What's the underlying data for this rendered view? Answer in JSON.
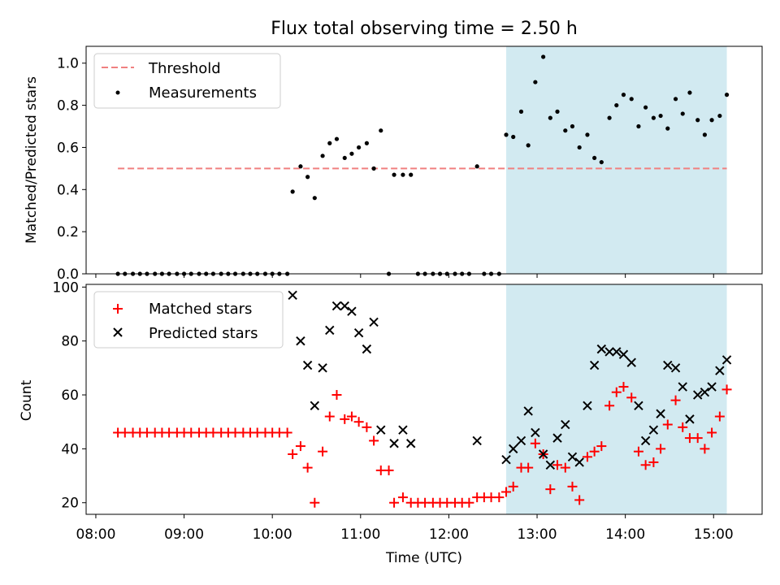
{
  "chart_data": {
    "type": "scatter",
    "title": "Flux total observing time = 2.50 h",
    "shared_x": {
      "xlabel": "Time (UTC)",
      "unit": "hours UTC",
      "ticks": [
        "08:00",
        "09:00",
        "10:00",
        "11:00",
        "12:00",
        "13:00",
        "14:00",
        "15:00"
      ],
      "tick_values": [
        8,
        9,
        10,
        11,
        12,
        13,
        14,
        15
      ],
      "xlim": [
        7.89,
        15.55
      ]
    },
    "highlight_span": {
      "x": [
        12.65,
        15.15
      ],
      "color": "#add8e6"
    },
    "top": {
      "ylabel": "Matched/Predicted stars",
      "ylim": [
        0,
        1.08
      ],
      "yticks": [
        "0.0",
        "0.2",
        "0.4",
        "0.6",
        "0.8",
        "1.0"
      ],
      "ytick_values": [
        0,
        0.2,
        0.4,
        0.6,
        0.8,
        1.0
      ],
      "legend": {
        "placement": "upper left",
        "entries": [
          "Threshold",
          "Measurements"
        ]
      },
      "threshold": {
        "name": "Threshold",
        "value": 0.5,
        "x": [
          8.25,
          15.15
        ],
        "color": "#f08080"
      },
      "measurements": {
        "name": "Measurements",
        "color": "#000000",
        "points": [
          [
            8.25,
            0
          ],
          [
            8.33,
            0
          ],
          [
            8.42,
            0
          ],
          [
            8.5,
            0
          ],
          [
            8.58,
            0
          ],
          [
            8.67,
            0
          ],
          [
            8.75,
            0
          ],
          [
            8.83,
            0
          ],
          [
            8.92,
            0
          ],
          [
            9.0,
            0
          ],
          [
            9.08,
            0
          ],
          [
            9.17,
            0
          ],
          [
            9.25,
            0
          ],
          [
            9.33,
            0
          ],
          [
            9.42,
            0
          ],
          [
            9.5,
            0
          ],
          [
            9.58,
            0
          ],
          [
            9.67,
            0
          ],
          [
            9.75,
            0
          ],
          [
            9.83,
            0
          ],
          [
            9.92,
            0
          ],
          [
            10.0,
            0
          ],
          [
            10.08,
            0
          ],
          [
            10.17,
            0
          ],
          [
            10.23,
            0.39
          ],
          [
            10.32,
            0.51
          ],
          [
            10.4,
            0.46
          ],
          [
            10.48,
            0.36
          ],
          [
            10.57,
            0.56
          ],
          [
            10.65,
            0.62
          ],
          [
            10.73,
            0.64
          ],
          [
            10.82,
            0.55
          ],
          [
            10.9,
            0.57
          ],
          [
            10.98,
            0.6
          ],
          [
            11.07,
            0.62
          ],
          [
            11.15,
            0.5
          ],
          [
            11.23,
            0.68
          ],
          [
            11.32,
            0
          ],
          [
            11.38,
            0.47
          ],
          [
            11.48,
            0.47
          ],
          [
            11.57,
            0.47
          ],
          [
            11.65,
            0
          ],
          [
            11.73,
            0
          ],
          [
            11.82,
            0
          ],
          [
            11.9,
            0
          ],
          [
            11.98,
            0
          ],
          [
            12.07,
            0
          ],
          [
            12.15,
            0
          ],
          [
            12.23,
            0
          ],
          [
            12.32,
            0.51
          ],
          [
            12.4,
            0
          ],
          [
            12.48,
            0
          ],
          [
            12.57,
            0
          ],
          [
            12.65,
            0.66
          ],
          [
            12.73,
            0.65
          ],
          [
            12.82,
            0.77
          ],
          [
            12.9,
            0.61
          ],
          [
            12.98,
            0.91
          ],
          [
            13.07,
            1.03
          ],
          [
            13.15,
            0.74
          ],
          [
            13.23,
            0.77
          ],
          [
            13.32,
            0.68
          ],
          [
            13.4,
            0.7
          ],
          [
            13.48,
            0.6
          ],
          [
            13.57,
            0.66
          ],
          [
            13.65,
            0.55
          ],
          [
            13.73,
            0.53
          ],
          [
            13.82,
            0.74
          ],
          [
            13.9,
            0.8
          ],
          [
            13.98,
            0.85
          ],
          [
            14.07,
            0.83
          ],
          [
            14.15,
            0.7
          ],
          [
            14.23,
            0.79
          ],
          [
            14.32,
            0.74
          ],
          [
            14.4,
            0.75
          ],
          [
            14.48,
            0.69
          ],
          [
            14.57,
            0.83
          ],
          [
            14.65,
            0.76
          ],
          [
            14.73,
            0.86
          ],
          [
            14.82,
            0.73
          ],
          [
            14.9,
            0.66
          ],
          [
            14.98,
            0.73
          ],
          [
            15.07,
            0.75
          ],
          [
            15.15,
            0.85
          ]
        ]
      }
    },
    "bottom": {
      "ylabel": "Count",
      "ylim": [
        15.7,
        101
      ],
      "yticks": [
        "20",
        "40",
        "60",
        "80",
        "100"
      ],
      "ytick_values": [
        20,
        40,
        60,
        80,
        100
      ],
      "legend": {
        "placement": "upper left",
        "entries": [
          "Matched stars",
          "Predicted stars"
        ]
      },
      "series": [
        {
          "name": "Matched stars",
          "marker": "+",
          "color": "#ff0000",
          "points": [
            [
              8.25,
              46
            ],
            [
              8.33,
              46
            ],
            [
              8.42,
              46
            ],
            [
              8.5,
              46
            ],
            [
              8.58,
              46
            ],
            [
              8.67,
              46
            ],
            [
              8.75,
              46
            ],
            [
              8.83,
              46
            ],
            [
              8.92,
              46
            ],
            [
              9.0,
              46
            ],
            [
              9.08,
              46
            ],
            [
              9.17,
              46
            ],
            [
              9.25,
              46
            ],
            [
              9.33,
              46
            ],
            [
              9.42,
              46
            ],
            [
              9.5,
              46
            ],
            [
              9.58,
              46
            ],
            [
              9.67,
              46
            ],
            [
              9.75,
              46
            ],
            [
              9.83,
              46
            ],
            [
              9.92,
              46
            ],
            [
              10.0,
              46
            ],
            [
              10.08,
              46
            ],
            [
              10.17,
              46
            ],
            [
              10.23,
              38
            ],
            [
              10.32,
              41
            ],
            [
              10.4,
              33
            ],
            [
              10.48,
              20
            ],
            [
              10.57,
              39
            ],
            [
              10.65,
              52
            ],
            [
              10.73,
              60
            ],
            [
              10.82,
              51
            ],
            [
              10.9,
              52
            ],
            [
              10.98,
              50
            ],
            [
              11.07,
              48
            ],
            [
              11.15,
              43
            ],
            [
              11.23,
              32
            ],
            [
              11.32,
              32
            ],
            [
              11.38,
              20
            ],
            [
              11.48,
              22
            ],
            [
              11.57,
              20
            ],
            [
              11.65,
              20
            ],
            [
              11.73,
              20
            ],
            [
              11.82,
              20
            ],
            [
              11.9,
              20
            ],
            [
              11.98,
              20
            ],
            [
              12.07,
              20
            ],
            [
              12.15,
              20
            ],
            [
              12.23,
              20
            ],
            [
              12.32,
              22
            ],
            [
              12.4,
              22
            ],
            [
              12.48,
              22
            ],
            [
              12.57,
              22
            ],
            [
              12.65,
              24
            ],
            [
              12.73,
              26
            ],
            [
              12.82,
              33
            ],
            [
              12.9,
              33
            ],
            [
              12.98,
              42
            ],
            [
              13.07,
              38
            ],
            [
              13.15,
              25
            ],
            [
              13.23,
              34
            ],
            [
              13.32,
              33
            ],
            [
              13.4,
              26
            ],
            [
              13.48,
              21
            ],
            [
              13.57,
              37
            ],
            [
              13.65,
              39
            ],
            [
              13.73,
              41
            ],
            [
              13.82,
              56
            ],
            [
              13.9,
              61
            ],
            [
              13.98,
              63
            ],
            [
              14.07,
              59
            ],
            [
              14.15,
              39
            ],
            [
              14.23,
              34
            ],
            [
              14.32,
              35
            ],
            [
              14.4,
              40
            ],
            [
              14.48,
              49
            ],
            [
              14.57,
              58
            ],
            [
              14.65,
              48
            ],
            [
              14.73,
              44
            ],
            [
              14.82,
              44
            ],
            [
              14.9,
              40
            ],
            [
              14.98,
              46
            ],
            [
              15.07,
              52
            ],
            [
              15.15,
              62
            ]
          ]
        },
        {
          "name": "Predicted stars",
          "marker": "x",
          "color": "#000000",
          "points": [
            [
              10.23,
              97
            ],
            [
              10.32,
              80
            ],
            [
              10.4,
              71
            ],
            [
              10.48,
              56
            ],
            [
              10.57,
              70
            ],
            [
              10.65,
              84
            ],
            [
              10.73,
              93
            ],
            [
              10.82,
              93
            ],
            [
              10.9,
              91
            ],
            [
              10.98,
              83
            ],
            [
              11.07,
              77
            ],
            [
              11.15,
              87
            ],
            [
              11.23,
              47
            ],
            [
              11.38,
              42
            ],
            [
              11.48,
              47
            ],
            [
              11.57,
              42
            ],
            [
              12.32,
              43
            ],
            [
              12.65,
              36
            ],
            [
              12.73,
              40
            ],
            [
              12.82,
              43
            ],
            [
              12.9,
              54
            ],
            [
              12.98,
              46
            ],
            [
              13.07,
              38
            ],
            [
              13.15,
              34
            ],
            [
              13.23,
              44
            ],
            [
              13.32,
              49
            ],
            [
              13.4,
              37
            ],
            [
              13.48,
              35
            ],
            [
              13.57,
              56
            ],
            [
              13.65,
              71
            ],
            [
              13.73,
              77
            ],
            [
              13.82,
              76
            ],
            [
              13.9,
              76
            ],
            [
              13.98,
              75
            ],
            [
              14.07,
              72
            ],
            [
              14.15,
              56
            ],
            [
              14.23,
              43
            ],
            [
              14.32,
              47
            ],
            [
              14.4,
              53
            ],
            [
              14.48,
              71
            ],
            [
              14.57,
              70
            ],
            [
              14.65,
              63
            ],
            [
              14.73,
              51
            ],
            [
              14.82,
              60
            ],
            [
              14.9,
              61
            ],
            [
              14.98,
              63
            ],
            [
              15.07,
              69
            ],
            [
              15.15,
              73
            ]
          ]
        }
      ]
    }
  }
}
